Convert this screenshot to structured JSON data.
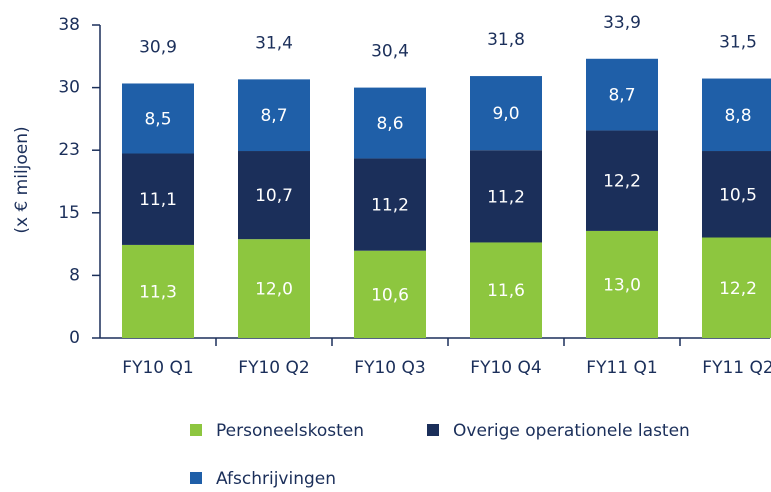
{
  "chart_data": {
    "type": "stacked_bar",
    "y_label": "(x € miljoen)",
    "categories": [
      "FY10 Q1",
      "FY10 Q2",
      "FY10 Q3",
      "FY10 Q4",
      "FY11 Q1",
      "FY11 Q2"
    ],
    "series": [
      {
        "name": "Personeelskosten",
        "color": "#8dc63f",
        "values": [
          11.3,
          12.0,
          10.6,
          11.6,
          13.0,
          12.2
        ],
        "value_labels": [
          "11,3",
          "12,0",
          "10,6",
          "11,6",
          "13,0",
          "12,2"
        ]
      },
      {
        "name": "Overige operationele lasten",
        "color": "#1b2f5a",
        "values": [
          11.1,
          10.7,
          11.2,
          11.2,
          12.2,
          10.5
        ],
        "value_labels": [
          "11,1",
          "10,7",
          "11,2",
          "11,2",
          "12,2",
          "10,5"
        ]
      },
      {
        "name": "Afschrijvingen",
        "color": "#1f5fa8",
        "values": [
          8.5,
          8.7,
          8.6,
          9.0,
          8.7,
          8.8
        ],
        "value_labels": [
          "8,5",
          "8,7",
          "8,6",
          "9,0",
          "8,7",
          "8,8"
        ]
      }
    ],
    "totals": [
      30.9,
      31.4,
      30.4,
      31.8,
      33.9,
      31.5
    ],
    "total_labels": [
      "30,9",
      "31,4",
      "30,4",
      "31,8",
      "33,9",
      "31,5"
    ],
    "ylim": [
      0,
      38
    ],
    "yticks": [
      0,
      {
        "value": 7.6,
        "label": "8"
      },
      {
        "value": 15.2,
        "label": "15"
      },
      {
        "value": 22.8,
        "label": "23"
      },
      {
        "value": 30.4,
        "label": "30"
      },
      38
    ],
    "legend": "bottom"
  }
}
